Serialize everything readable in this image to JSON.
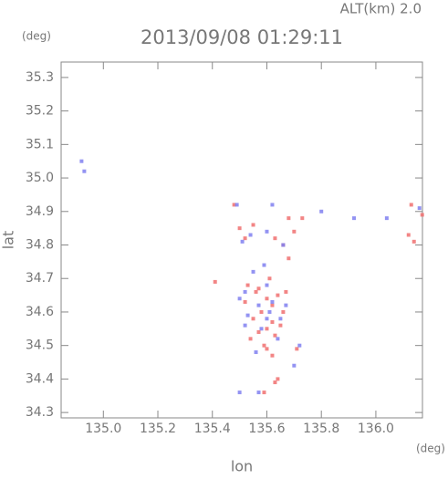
{
  "chart_data": {
    "type": "scatter",
    "title": "2013/09/08 01:29:11",
    "subtitle": "ALT(km) 2.0",
    "x_label": "lon",
    "x_unit": "(deg)",
    "y_label": "lat",
    "y_unit": "(deg)",
    "xlim": [
      134.845,
      136.171
    ],
    "ylim": [
      34.284,
      35.346
    ],
    "xticks": [
      {
        "value": 135.0,
        "label": "135.0"
      },
      135.2,
      135.4,
      135.6,
      135.8,
      {
        "value": 136.0,
        "label": "136.0"
      }
    ],
    "yticks": [
      34.3,
      34.4,
      34.5,
      34.6,
      34.7,
      34.8,
      34.9,
      {
        "value": 35.0,
        "label": "35.0"
      },
      35.1,
      35.2,
      35.3
    ],
    "series": [
      {
        "color": "#f07070",
        "x": [
          135.62,
          135.58,
          135.55,
          135.6,
          135.64,
          135.66,
          135.52,
          135.57,
          135.61,
          135.63,
          135.59,
          135.54,
          135.6,
          135.62,
          135.65,
          135.5,
          135.52,
          135.55,
          135.63,
          135.66,
          135.68,
          135.7,
          135.73,
          135.68,
          136.13,
          136.12,
          136.17,
          136.14,
          135.63,
          135.64,
          135.59,
          135.48,
          135.56,
          135.6,
          135.67,
          135.62,
          135.57,
          135.53,
          135.71,
          135.41
        ],
        "y": [
          34.62,
          34.6,
          34.58,
          34.55,
          34.65,
          34.6,
          34.63,
          34.67,
          34.7,
          34.53,
          34.5,
          34.52,
          34.49,
          34.47,
          34.56,
          34.85,
          34.82,
          34.86,
          34.82,
          34.8,
          34.88,
          34.84,
          34.88,
          34.76,
          34.92,
          34.83,
          34.89,
          34.81,
          34.39,
          34.4,
          34.36,
          34.92,
          34.66,
          34.64,
          34.66,
          34.57,
          34.54,
          34.68,
          34.49,
          34.69
        ]
      },
      {
        "color": "#8080f0",
        "x": [
          135.55,
          135.6,
          135.5,
          135.57,
          135.53,
          135.62,
          135.65,
          135.58,
          135.52,
          135.61,
          134.93,
          134.92,
          135.49,
          135.62,
          135.92,
          136.16,
          136.04,
          135.8,
          135.54,
          135.51,
          135.6,
          135.66,
          135.72,
          135.7,
          135.59,
          135.64,
          135.56,
          135.52,
          135.5,
          135.57,
          135.6,
          135.67
        ],
        "y": [
          34.72,
          34.68,
          34.64,
          34.62,
          34.59,
          34.63,
          34.58,
          34.55,
          34.66,
          34.6,
          35.02,
          35.05,
          34.92,
          34.92,
          34.88,
          34.91,
          34.88,
          34.9,
          34.83,
          34.81,
          34.84,
          34.8,
          34.5,
          34.44,
          34.74,
          34.52,
          34.48,
          34.56,
          34.36,
          34.36,
          34.58,
          34.62
        ]
      }
    ]
  }
}
